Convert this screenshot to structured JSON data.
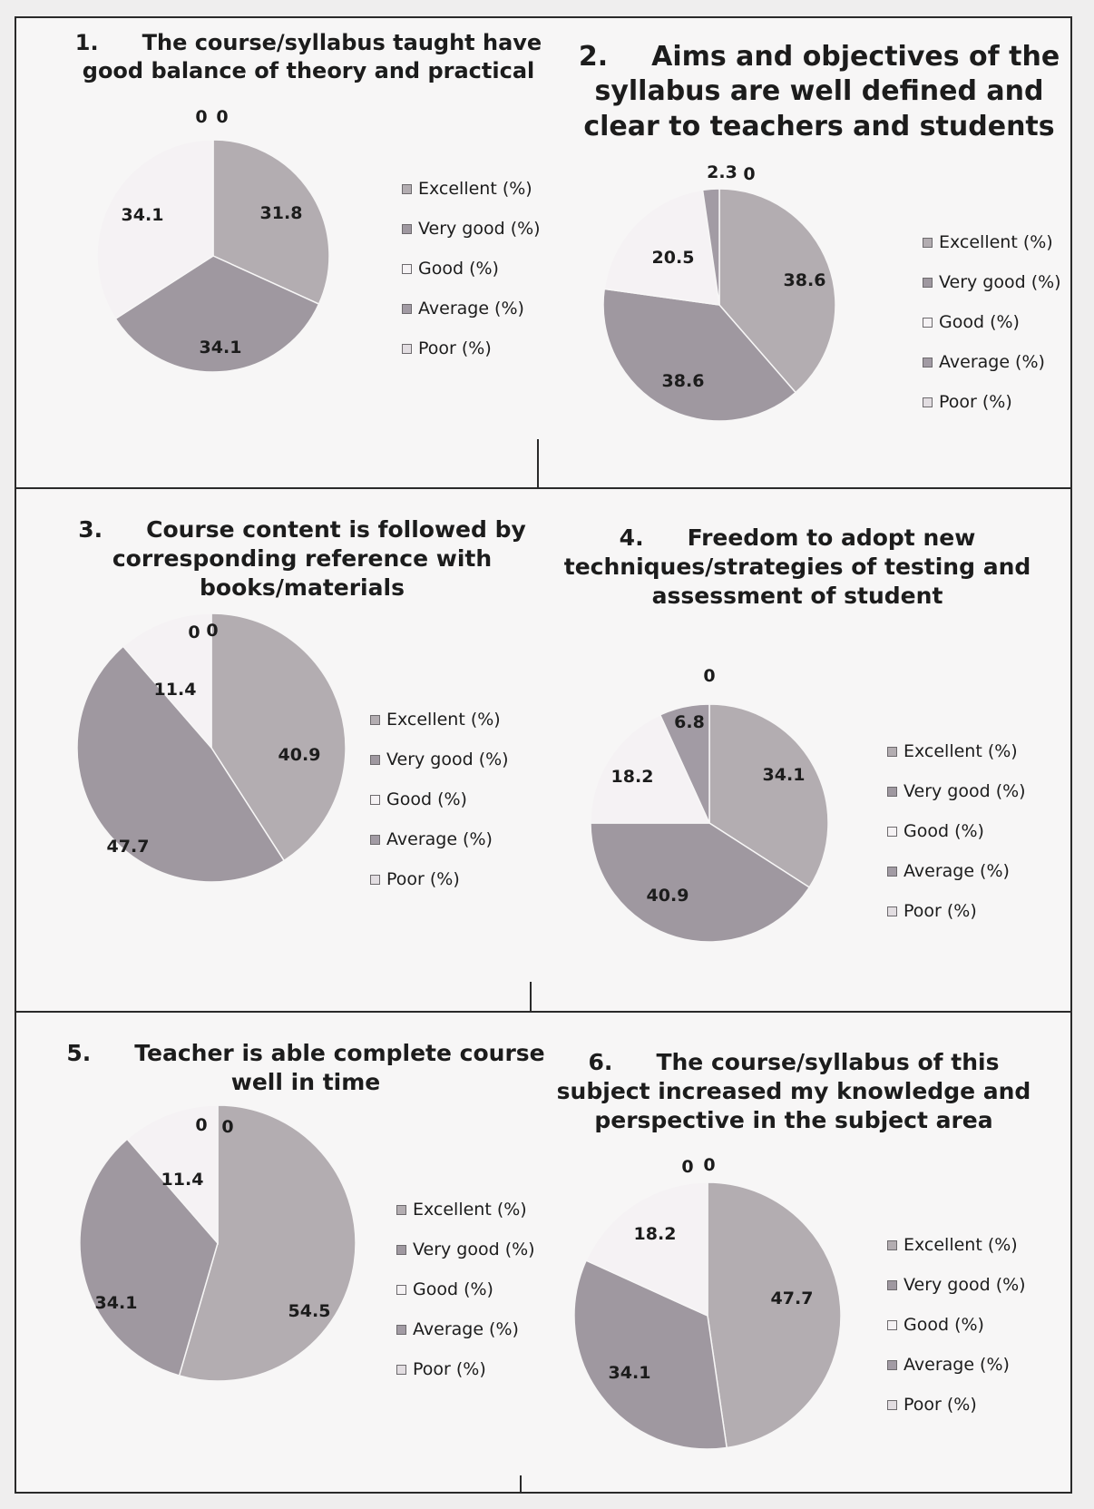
{
  "colors": {
    "excellent": "#b3adb1",
    "very_good": "#9f98a0",
    "good": "#f5f2f4",
    "average": "#a29ba4",
    "poor": "#e2dde1"
  },
  "legend_labels": [
    "Excellent (%)",
    "Very good (%)",
    "Good (%)",
    "Average (%)",
    "Poor (%)"
  ],
  "chart_data": [
    {
      "type": "pie",
      "number": "1.",
      "title_lines": [
        "The course/syllabus taught have",
        "good balance of theory and practical"
      ],
      "categories": [
        "Excellent (%)",
        "Very good (%)",
        "Good (%)",
        "Average (%)",
        "Poor (%)"
      ],
      "values": [
        31.8,
        34.1,
        34.1,
        0,
        0
      ],
      "data_labels": [
        "31.8",
        "34.1",
        "34.1",
        "0",
        "0"
      ]
    },
    {
      "type": "pie",
      "number": "2.",
      "title_lines": [
        "Aims and objectives of the",
        "syllabus are well defined and",
        "clear to teachers and students"
      ],
      "categories": [
        "Excellent (%)",
        "Very good (%)",
        "Good (%)",
        "Average (%)",
        "Poor (%)"
      ],
      "values": [
        38.6,
        38.6,
        20.5,
        2.3,
        0
      ],
      "data_labels": [
        "38.6",
        "38.6",
        "20.5",
        "2.3",
        "0"
      ]
    },
    {
      "type": "pie",
      "number": "3.",
      "title_lines": [
        "Course content is followed by",
        "corresponding reference with",
        "books/materials"
      ],
      "categories": [
        "Excellent (%)",
        "Very good (%)",
        "Good (%)",
        "Average (%)",
        "Poor (%)"
      ],
      "values": [
        40.9,
        47.7,
        11.4,
        0,
        0
      ],
      "data_labels": [
        "40.9",
        "47.7",
        "11.4",
        "0",
        "0"
      ]
    },
    {
      "type": "pie",
      "number": "4.",
      "title_lines": [
        "Freedom to adopt new",
        "techniques/strategies of testing and",
        "assessment of student"
      ],
      "categories": [
        "Excellent (%)",
        "Very good (%)",
        "Good (%)",
        "Average (%)",
        "Poor (%)"
      ],
      "values": [
        34.1,
        40.9,
        18.2,
        6.8,
        0
      ],
      "data_labels": [
        "34.1",
        "40.9",
        "18.2",
        "6.8",
        "0"
      ]
    },
    {
      "type": "pie",
      "number": "5.",
      "title_lines": [
        "Teacher is able complete course",
        "well in time"
      ],
      "categories": [
        "Excellent (%)",
        "Very good (%)",
        "Good (%)",
        "Average (%)",
        "Poor (%)"
      ],
      "values": [
        54.5,
        34.1,
        11.4,
        0,
        0
      ],
      "data_labels": [
        "54.5",
        "34.1",
        "11.4",
        "0",
        "0"
      ]
    },
    {
      "type": "pie",
      "number": "6.",
      "title_lines": [
        "The course/syllabus of this",
        "subject increased my knowledge and",
        "perspective in the subject area"
      ],
      "categories": [
        "Excellent (%)",
        "Very good (%)",
        "Good (%)",
        "Average (%)",
        "Poor (%)"
      ],
      "values": [
        47.7,
        34.1,
        18.2,
        0,
        0
      ],
      "data_labels": [
        "47.7",
        "34.1",
        "18.2",
        "0",
        "0"
      ]
    }
  ]
}
